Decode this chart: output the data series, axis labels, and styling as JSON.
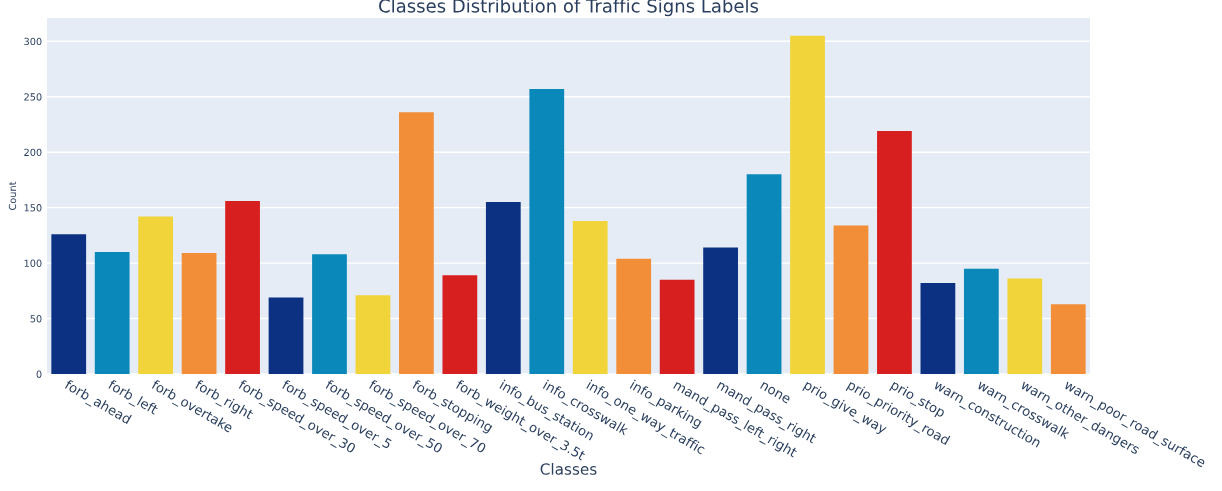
{
  "chart_data": {
    "type": "bar",
    "title": "Classes Distribution of Traffic Signs Labels",
    "xlabel": "Classes",
    "ylabel": "Count",
    "categories": [
      "forb_ahead",
      "forb_left",
      "forb_overtake",
      "forb_right",
      "forb_speed_over_30",
      "forb_speed_over_5",
      "forb_speed_over_50",
      "forb_speed_over_70",
      "forb_stopping",
      "forb_weight_over_3.5t",
      "info_bus_station",
      "info_crosswalk",
      "info_one_way_traffic",
      "info_parking",
      "mand_pass_left_right",
      "mand_pass_right",
      "none",
      "prio_give_way",
      "prio_priority_road",
      "prio_stop",
      "warn_construction",
      "warn_crosswalk",
      "warn_other_dangers",
      "warn_poor_road_surface"
    ],
    "values": [
      126,
      110,
      142,
      109,
      156,
      69,
      108,
      71,
      236,
      89,
      155,
      257,
      138,
      104,
      85,
      114,
      180,
      305,
      134,
      219,
      82,
      95,
      86,
      63
    ],
    "colors": [
      "#0c3182",
      "#0b88ba",
      "#f1d43a",
      "#f28e38",
      "#d81f1f",
      "#0c3182",
      "#0b88ba",
      "#f1d43a",
      "#f28e38",
      "#d81f1f",
      "#0c3182",
      "#0b88ba",
      "#f1d43a",
      "#f28e38",
      "#d81f1f",
      "#0c3182",
      "#0b88ba",
      "#f1d43a",
      "#f28e38",
      "#d81f1f",
      "#0c3182",
      "#0b88ba",
      "#f1d43a",
      "#f28e38"
    ],
    "ylim": [
      0,
      321
    ],
    "yticks": [
      0,
      50,
      100,
      150,
      200,
      250,
      300
    ],
    "grid": "y"
  }
}
